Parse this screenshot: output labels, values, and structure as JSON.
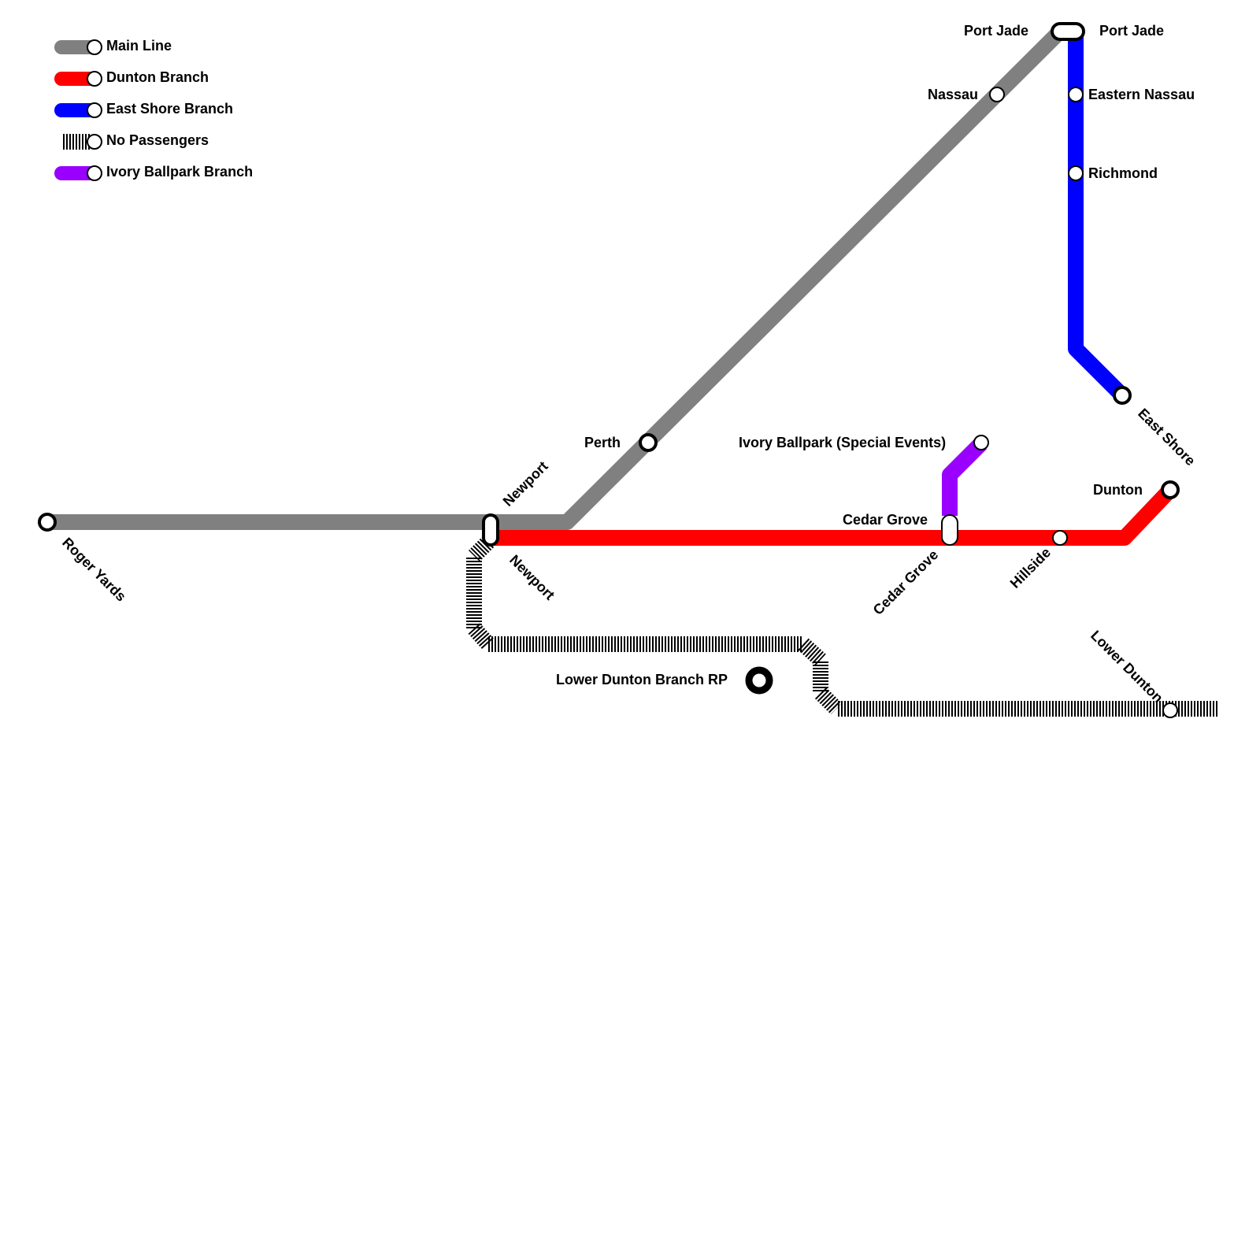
{
  "legend": [
    {
      "label": "Main Line",
      "color": "#808080",
      "style": "solid"
    },
    {
      "label": "Dunton Branch",
      "color": "#ff0000",
      "style": "solid"
    },
    {
      "label": "East Shore Branch",
      "color": "#0000ff",
      "style": "solid"
    },
    {
      "label": "No Passengers",
      "color": "#000000",
      "style": "hatched"
    },
    {
      "label": "Ivory Ballpark Branch",
      "color": "#9900ff",
      "style": "solid"
    }
  ],
  "lines": {
    "main": {
      "name": "Main Line",
      "color": "#808080"
    },
    "dunton": {
      "name": "Dunton Branch",
      "color": "#ff0000"
    },
    "east_shore": {
      "name": "East Shore Branch",
      "color": "#0000ff"
    },
    "no_passengers": {
      "name": "No Passengers",
      "color": "#000000"
    },
    "ivory": {
      "name": "Ivory Ballpark Branch",
      "color": "#9900ff"
    }
  },
  "stations": {
    "roger_yards": "Roger Yards",
    "newport_top": "Newport",
    "newport_bottom": "Newport",
    "perth": "Perth",
    "nassau": "Nassau",
    "port_jade_left": "Port Jade",
    "port_jade_right": "Port Jade",
    "eastern_nassau": "Eastern Nassau",
    "richmond": "Richmond",
    "east_shore": "East Shore",
    "ivory_ballpark": "Ivory Ballpark (Special Events)",
    "cedar_grove_top": "Cedar Grove",
    "cedar_grove_bottom": "Cedar Grove",
    "hillside": "Hillside",
    "dunton": "Dunton",
    "lower_dunton": "Lower Dunton",
    "lower_dunton_rp": "Lower Dunton Branch RP"
  }
}
